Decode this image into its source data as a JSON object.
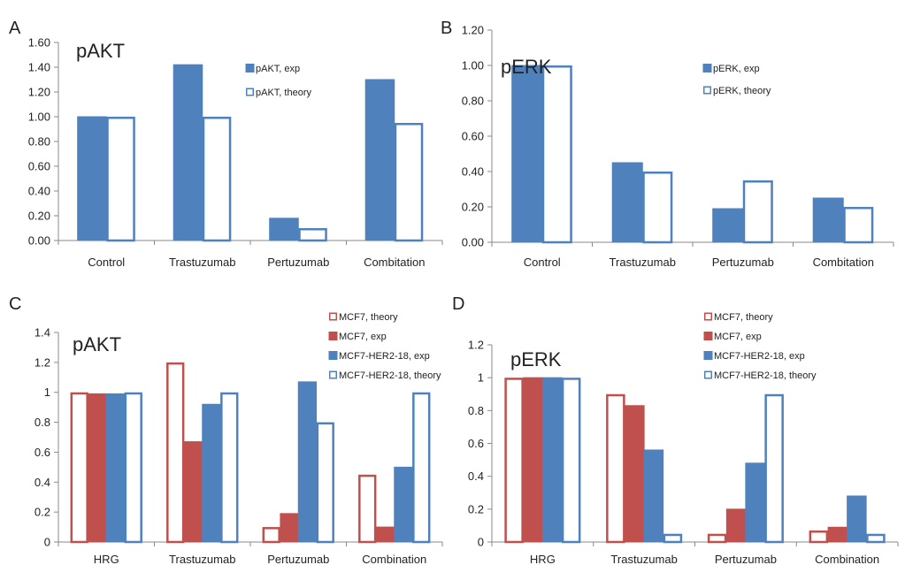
{
  "colors": {
    "blue": "#4f81bd",
    "red": "#c0504d",
    "axis": "#8a8a8a",
    "text": "#222222"
  },
  "chart_data": [
    {
      "id": "A",
      "panel_label": "A",
      "type": "bar",
      "title": "pAKT",
      "categories": [
        "Control",
        "Trastuzumab",
        "Pertuzumab",
        "Combitation"
      ],
      "ylim": [
        0,
        1.6
      ],
      "yticks": [
        "0.00",
        "0.20",
        "0.40",
        "0.60",
        "0.80",
        "1.00",
        "1.20",
        "1.40",
        "1.60"
      ],
      "grid": false,
      "legend_position": "top-right",
      "series": [
        {
          "name": "pAKT, exp",
          "style": "filled",
          "color": "#4f81bd",
          "values": [
            1.0,
            1.42,
            0.18,
            1.3
          ]
        },
        {
          "name": "pAKT, theory",
          "style": "outline",
          "color": "#4f81bd",
          "values": [
            1.0,
            1.0,
            0.1,
            0.95
          ]
        }
      ]
    },
    {
      "id": "B",
      "panel_label": "B",
      "type": "bar",
      "title": "pERK",
      "categories": [
        "Control",
        "Trastuzumab",
        "Pertuzumab",
        "Combitation"
      ],
      "ylim": [
        0,
        1.2
      ],
      "yticks": [
        "0.00",
        "0.20",
        "0.40",
        "0.60",
        "0.80",
        "1.00",
        "1.20"
      ],
      "grid": false,
      "legend_position": "top-right",
      "series": [
        {
          "name": "pERK, exp",
          "style": "filled",
          "color": "#4f81bd",
          "values": [
            1.0,
            0.45,
            0.19,
            0.25
          ]
        },
        {
          "name": "pERK, theory",
          "style": "outline",
          "color": "#4f81bd",
          "values": [
            1.0,
            0.4,
            0.35,
            0.2
          ]
        }
      ]
    },
    {
      "id": "C",
      "panel_label": "C",
      "type": "bar",
      "title": "pAKT",
      "categories": [
        "HRG",
        "Trastuzumab",
        "Pertuzumab",
        "Combination"
      ],
      "ylim": [
        0,
        1.4
      ],
      "yticks": [
        "0",
        "0.2",
        "0.4",
        "0.6",
        "0.8",
        "1",
        "1.2",
        "1.4"
      ],
      "grid": false,
      "legend_position": "top-right",
      "series": [
        {
          "name": "MCF7, theory",
          "style": "outline",
          "color": "#c0504d",
          "values": [
            1.0,
            1.2,
            0.1,
            0.45
          ]
        },
        {
          "name": "MCF7, exp",
          "style": "filled",
          "color": "#c0504d",
          "values": [
            0.99,
            0.67,
            0.19,
            0.1
          ]
        },
        {
          "name": "MCF7-HER2-18, exp",
          "style": "filled",
          "color": "#4f81bd",
          "values": [
            0.99,
            0.92,
            1.07,
            0.5
          ]
        },
        {
          "name": "MCF7-HER2-18, theory",
          "style": "outline",
          "color": "#4f81bd",
          "values": [
            1.0,
            1.0,
            0.8,
            1.0
          ]
        }
      ]
    },
    {
      "id": "D",
      "panel_label": "D",
      "type": "bar",
      "title": "pERK",
      "categories": [
        "HRG",
        "Trastuzumab",
        "Pertuzumab",
        "Combination"
      ],
      "ylim": [
        0,
        1.2
      ],
      "yticks": [
        "0",
        "0.2",
        "0.4",
        "0.6",
        "0.8",
        "1",
        "1.2"
      ],
      "grid": false,
      "legend_position": "top-right",
      "series": [
        {
          "name": "MCF7, theory",
          "style": "outline",
          "color": "#c0504d",
          "values": [
            1.0,
            0.9,
            0.05,
            0.07
          ]
        },
        {
          "name": "MCF7, exp",
          "style": "filled",
          "color": "#c0504d",
          "values": [
            1.0,
            0.83,
            0.2,
            0.09
          ]
        },
        {
          "name": "MCF7-HER2-18, exp",
          "style": "filled",
          "color": "#4f81bd",
          "values": [
            1.0,
            0.56,
            0.48,
            0.28
          ]
        },
        {
          "name": "MCF7-HER2-18, theory",
          "style": "outline",
          "color": "#4f81bd",
          "values": [
            1.0,
            0.05,
            0.9,
            0.05
          ]
        }
      ]
    }
  ]
}
